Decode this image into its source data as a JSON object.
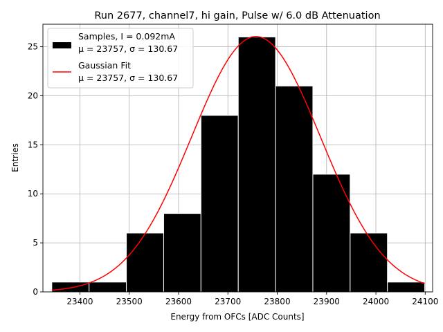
{
  "chart_data": {
    "type": "histogram",
    "title": "Run 2677, channel7, hi gain, Pulse w/ 6.0 dB Attenuation",
    "xlabel": "Energy from OFCs [ADC Counts]",
    "ylabel": "Entries",
    "xlim": [
      23325,
      24115
    ],
    "ylim": [
      0,
      27.3
    ],
    "xticks": [
      23400,
      23500,
      23600,
      23700,
      23800,
      23900,
      24000,
      24100
    ],
    "yticks": [
      0,
      5,
      10,
      15,
      20,
      25
    ],
    "grid": true,
    "legend_position": "top-left",
    "bin_edges": [
      23343,
      23418.6,
      23494.2,
      23569.8,
      23645.4,
      23721,
      23796.6,
      23872.2,
      23947.8,
      24023.4,
      24099
    ],
    "counts": [
      1,
      1,
      6,
      8,
      18,
      26,
      21,
      12,
      6,
      1
    ],
    "fit": {
      "type": "gaussian",
      "mu": 23757,
      "sigma": 130.67,
      "amplitude": 26.05
    },
    "series": [
      {
        "name": "Samples, I = 0.092mA",
        "stats": "μ = 23757, σ = 130.67",
        "color": "#000000"
      },
      {
        "name": "Gaussian Fit",
        "stats": "μ = 23757, σ = 130.67",
        "color": "#ff0000"
      }
    ]
  }
}
